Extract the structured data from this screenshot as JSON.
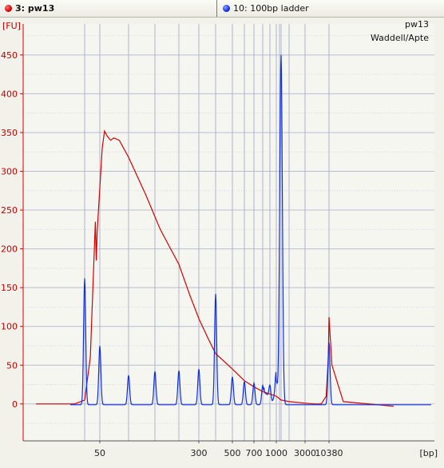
{
  "tabs": [
    {
      "label": "3: pw13",
      "color": "#d40000"
    },
    {
      "label": "10: 100bp ladder",
      "color": "#1030e0"
    }
  ],
  "chart_data": {
    "type": "line",
    "ylabel": "[FU]",
    "xlabel": "[bp]",
    "annotations": [
      "pw13",
      "Waddell/Apte"
    ],
    "y_ticks": [
      0,
      50,
      100,
      150,
      200,
      250,
      300,
      350,
      400,
      450
    ],
    "ylim": [
      -50,
      480
    ],
    "x_tick_labels": [
      "50",
      "300",
      "500",
      "700",
      "1000",
      "3000",
      "10380"
    ],
    "x_scale": "nonlinear (migration-time based, sizes shown in bp)",
    "ladder_sizes_bp": [
      35,
      50,
      100,
      150,
      200,
      300,
      400,
      500,
      600,
      700,
      800,
      900,
      1000,
      1200,
      1500,
      2000,
      3000,
      10380
    ],
    "grid": true,
    "series": [
      {
        "name": "3: pw13",
        "color": "#d40000",
        "description": "sample trace",
        "points_bp_fu": [
          [
            12,
            0
          ],
          [
            20,
            0
          ],
          [
            28,
            0
          ],
          [
            35,
            5
          ],
          [
            40,
            60
          ],
          [
            45,
            235
          ],
          [
            46,
            185
          ],
          [
            47,
            222
          ],
          [
            49,
            260
          ],
          [
            53,
            330
          ],
          [
            56,
            352
          ],
          [
            60,
            345
          ],
          [
            65,
            340
          ],
          [
            70,
            343
          ],
          [
            80,
            340
          ],
          [
            100,
            318
          ],
          [
            130,
            270
          ],
          [
            160,
            225
          ],
          [
            200,
            180
          ],
          [
            250,
            140
          ],
          [
            300,
            110
          ],
          [
            350,
            85
          ],
          [
            400,
            65
          ],
          [
            500,
            45
          ],
          [
            600,
            30
          ],
          [
            700,
            22
          ],
          [
            800,
            16
          ],
          [
            1000,
            10
          ],
          [
            1500,
            5
          ],
          [
            2000,
            3
          ],
          [
            3000,
            1
          ],
          [
            5000,
            0
          ],
          [
            7000,
            0
          ],
          [
            9000,
            10
          ],
          [
            10000,
            60
          ],
          [
            10380,
            112
          ],
          [
            10700,
            50
          ],
          [
            12000,
            3
          ],
          [
            20000,
            -3
          ]
        ]
      },
      {
        "name": "10: 100bp ladder",
        "color": "#1030e0",
        "description": "ladder trace",
        "peaks_bp_fu": [
          [
            35,
            163
          ],
          [
            50,
            76
          ],
          [
            100,
            38
          ],
          [
            150,
            43
          ],
          [
            200,
            44
          ],
          [
            300,
            46
          ],
          [
            400,
            143
          ],
          [
            500,
            36
          ],
          [
            600,
            30
          ],
          [
            700,
            28
          ],
          [
            800,
            25
          ],
          [
            900,
            22
          ],
          [
            1000,
            30
          ],
          [
            1200,
            30
          ],
          [
            1500,
            442
          ],
          [
            10380,
            80
          ]
        ]
      }
    ]
  }
}
